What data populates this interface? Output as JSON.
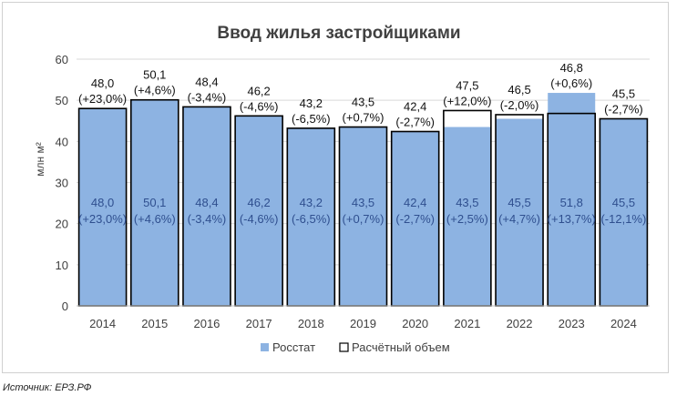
{
  "chart_data": {
    "type": "bar",
    "title": "Ввод жилья застройщиками",
    "ylabel": "млн м²",
    "xlabel": "",
    "ylim": [
      0,
      60
    ],
    "yticks": [
      0,
      10,
      20,
      30,
      40,
      50,
      60
    ],
    "grid": true,
    "legend_position": "bottom",
    "categories": [
      "2014",
      "2015",
      "2016",
      "2017",
      "2018",
      "2019",
      "2020",
      "2021",
      "2022",
      "2023",
      "2024"
    ],
    "series": [
      {
        "name": "Росстат",
        "color": "#8db3e2",
        "values": [
          48.0,
          50.1,
          48.4,
          46.2,
          43.2,
          43.5,
          42.4,
          43.5,
          45.5,
          51.8,
          45.5
        ],
        "labels": [
          "48,0",
          "50,1",
          "48,4",
          "46,2",
          "43,2",
          "43,5",
          "42,4",
          "43,5",
          "45,5",
          "51,8",
          "45,5"
        ],
        "changes": [
          "(+23,0%)",
          "(+4,6%)",
          "(-3,4%)",
          "(-4,6%)",
          "(-6,5%)",
          "(+0,7%)",
          "(-2,7%)",
          "(+2,5%)",
          "(+4,7%)",
          "(+13,7%)",
          "(-12,1%)"
        ]
      },
      {
        "name": "Расчётный объем",
        "color": "#000000",
        "values": [
          48.0,
          50.1,
          48.4,
          46.2,
          43.2,
          43.5,
          42.4,
          47.5,
          46.5,
          46.8,
          45.5
        ],
        "labels": [
          "48,0",
          "50,1",
          "48,4",
          "46,2",
          "43,2",
          "43,5",
          "42,4",
          "47,5",
          "46,5",
          "46,8",
          "45,5"
        ],
        "changes": [
          "(+23,0%)",
          "(+4,6%)",
          "(-3,4%)",
          "(-4,6%)",
          "(-6,5%)",
          "(+0,7%)",
          "(-2,7%)",
          "(+12,0%)",
          "(-2,0%)",
          "(+0,6%)",
          "(-2,7%)"
        ]
      }
    ]
  },
  "source": "Источник: ЕРЗ.РФ"
}
